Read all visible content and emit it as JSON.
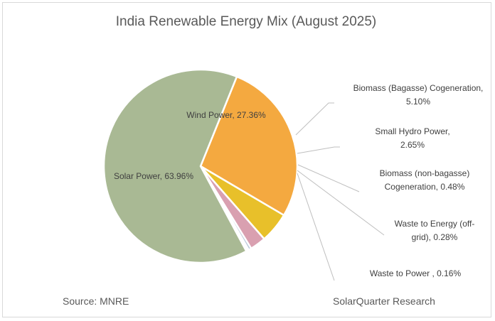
{
  "chart_data": {
    "type": "pie",
    "title": "India Renewable Energy Mix (August 2025)",
    "slices": [
      {
        "name": "Wind Power",
        "value": 27.36,
        "label_lines": [
          "Wind Power, 27.36%"
        ],
        "color": "#f4a940"
      },
      {
        "name": "Biomass (Bagasse) Cogeneration",
        "value": 5.1,
        "label_lines": [
          "Biomass (Bagasse) Cogeneration,",
          "5.10%"
        ],
        "color": "#e8c02a"
      },
      {
        "name": "Small Hydro Power",
        "value": 2.65,
        "label_lines": [
          "Small Hydro Power,",
          "2.65%"
        ],
        "color": "#d9a0b0"
      },
      {
        "name": "Biomass (non-bagasse) Cogeneration",
        "value": 0.48,
        "label_lines": [
          "Biomass (non-bagasse)",
          "Cogeneration, 0.48%"
        ],
        "color": "#b8c7d9"
      },
      {
        "name": "Waste to Energy (off-grid)",
        "value": 0.28,
        "label_lines": [
          "Waste to Energy (off-",
          "grid), 0.28%"
        ],
        "color": "#c9b8d9"
      },
      {
        "name": "Waste to Power",
        "value": 0.16,
        "label_lines": [
          "Waste to Power      , 0.16%"
        ],
        "color": "#9dc3e6"
      },
      {
        "name": "Solar Power",
        "value": 63.96,
        "label_lines": [
          "Solar Power, 63.96%"
        ],
        "color": "#a9b994"
      }
    ]
  },
  "footer": {
    "source": "Source: MNRE",
    "credit": "SolarQuarter Research"
  }
}
